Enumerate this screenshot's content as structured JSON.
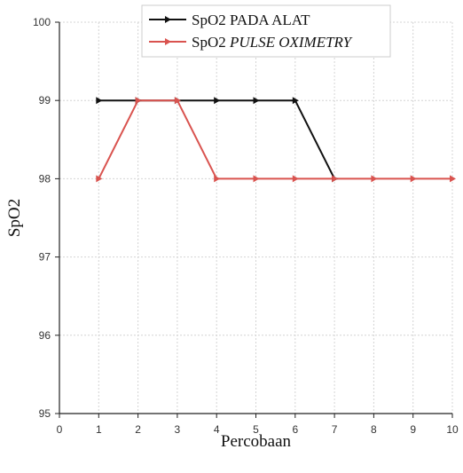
{
  "chart_data": {
    "type": "line",
    "xlabel": "Percobaan",
    "ylabel": "SpO2",
    "xlim": [
      0,
      10
    ],
    "ylim": [
      95,
      100
    ],
    "xticks": [
      "0",
      "1",
      "2",
      "3",
      "4",
      "5",
      "6",
      "7",
      "8",
      "9",
      "10"
    ],
    "yticks": [
      "95",
      "96",
      "97",
      "98",
      "99",
      "100"
    ],
    "grid": true,
    "legend_position": "top-center",
    "x": [
      1,
      2,
      3,
      4,
      5,
      6,
      7,
      8,
      9,
      10
    ],
    "series": [
      {
        "name": "SpO2 PADA ALAT",
        "name_prefix": "SpO2 ",
        "name_rest": "PADA ALAT",
        "italic_rest": false,
        "color": "#111111",
        "x": [
          1,
          2,
          3,
          4,
          5,
          6,
          7
        ],
        "values": [
          99,
          99,
          99,
          99,
          99,
          99,
          98
        ]
      },
      {
        "name": "SpO2 PULSE OXIMETRY",
        "name_prefix": "SpO2 ",
        "name_rest": "PULSE OXIMETRY",
        "italic_rest": true,
        "color": "#d9534f",
        "x": [
          1,
          2,
          3,
          4,
          5,
          6,
          7,
          8,
          9,
          10
        ],
        "values": [
          98,
          99,
          99,
          98,
          98,
          98,
          98,
          98,
          98,
          98
        ]
      }
    ]
  }
}
